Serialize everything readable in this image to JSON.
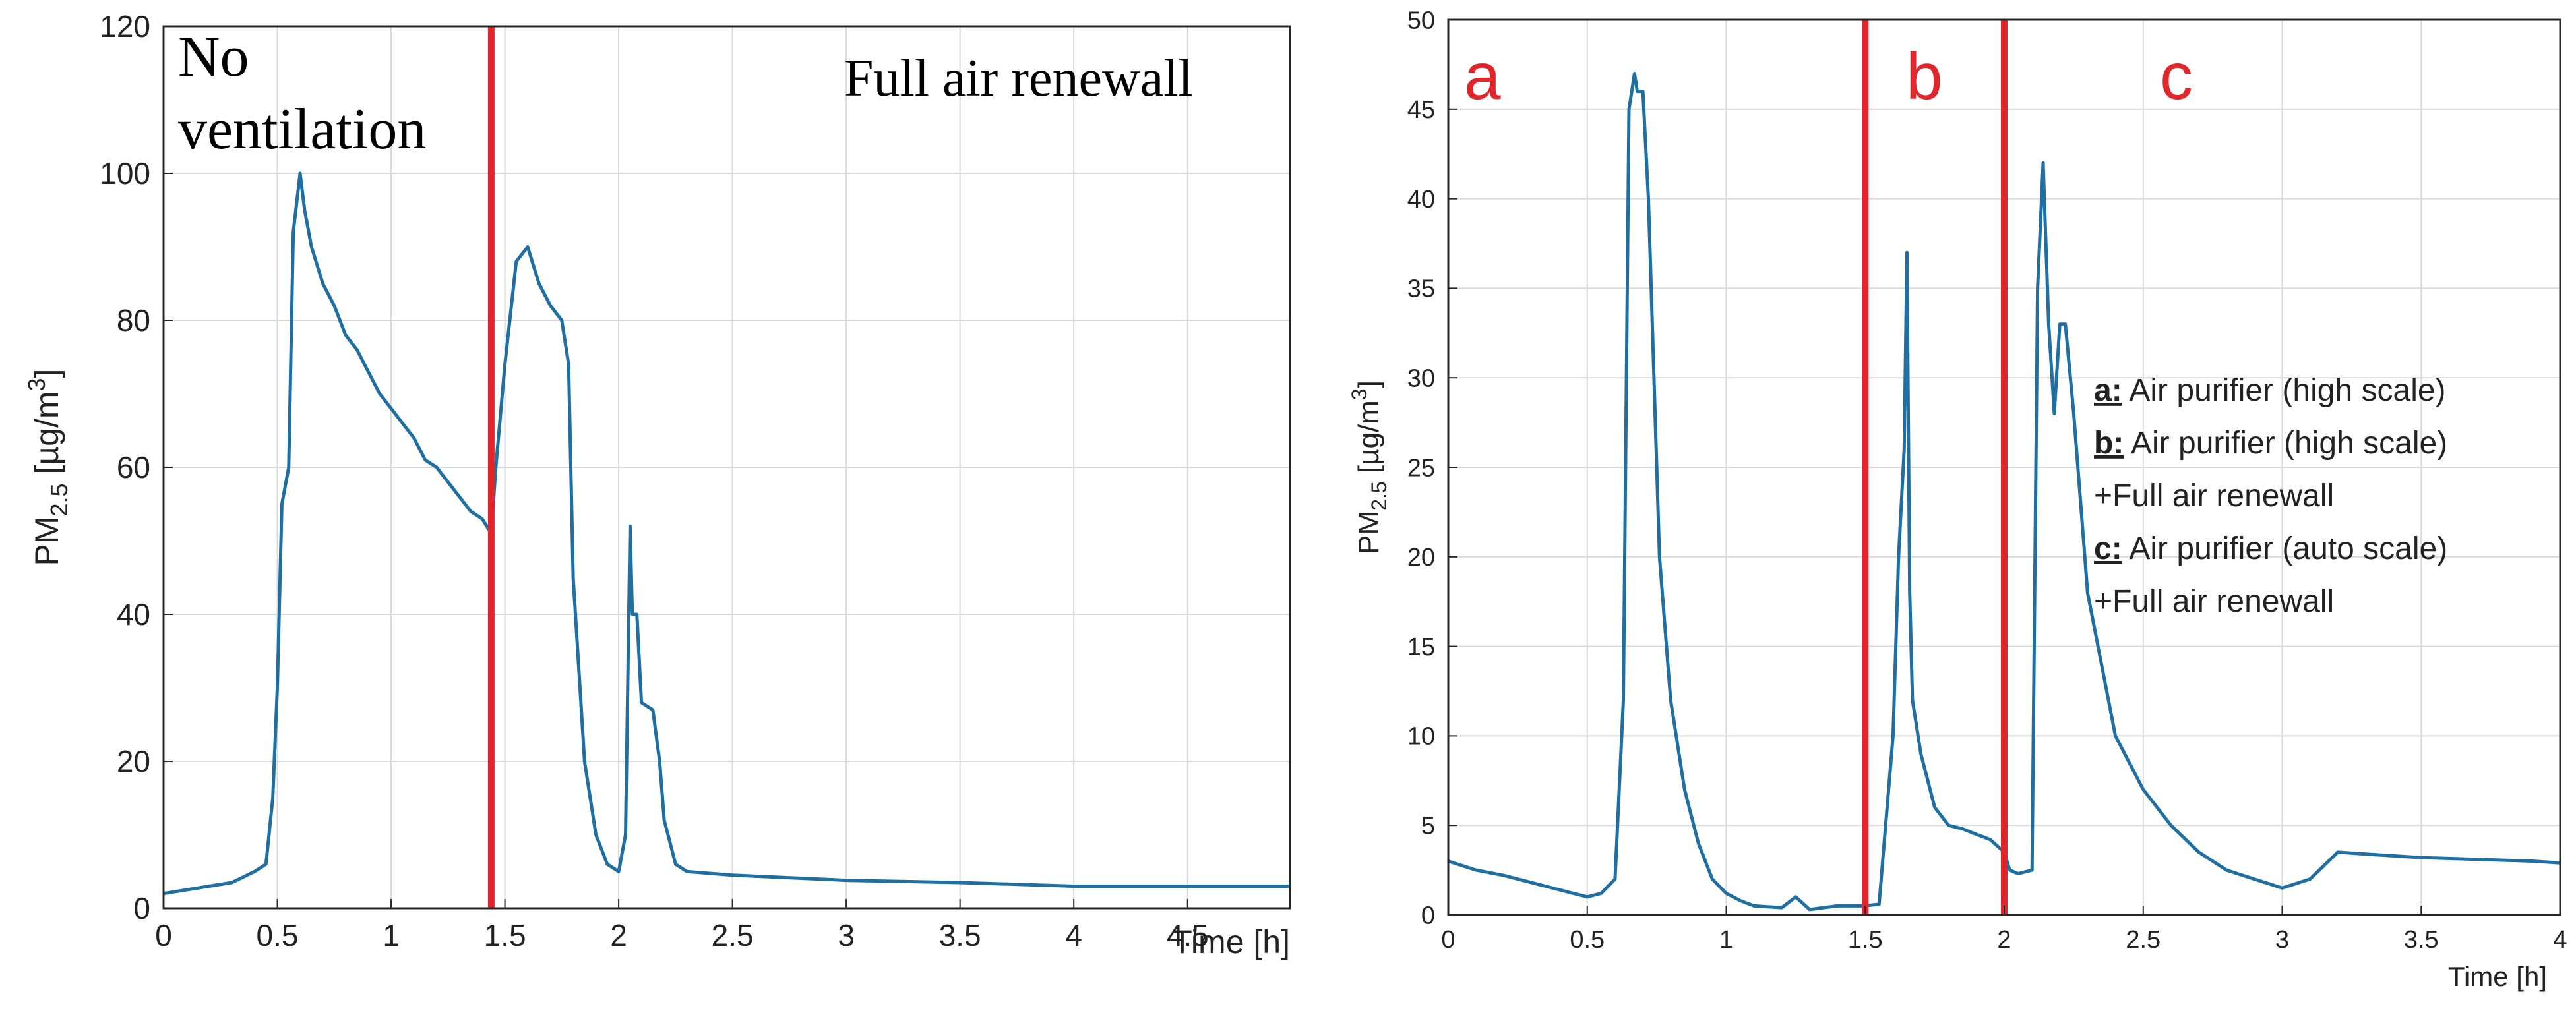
{
  "colors": {
    "series": "#1f6fa3",
    "marker_line": "#e0252b",
    "grid": "#d9d9d9",
    "axis": "#262626"
  },
  "chart_data": [
    {
      "type": "line",
      "xlabel": "Time [h]",
      "ylabel": "PM2.5 [µg/m3]",
      "ylabel_parts": {
        "main": "PM",
        "sub": "2.5",
        "unit": " [µg/m",
        "sup": "3",
        "close": "]"
      },
      "xlim": [
        0,
        4.95
      ],
      "ylim": [
        0,
        120
      ],
      "x_ticks": [
        0,
        0.5,
        1,
        1.5,
        2,
        2.5,
        3,
        3.5,
        4,
        4.5
      ],
      "x_tick_labels": [
        "0",
        "0.5",
        "1",
        "1.5",
        "2",
        "2.5",
        "3",
        "3.5",
        "4",
        "4.5"
      ],
      "y_ticks": [
        0,
        20,
        40,
        60,
        80,
        100,
        120
      ],
      "y_tick_labels": [
        "0",
        "20",
        "40",
        "60",
        "80",
        "100",
        "120"
      ],
      "grid": true,
      "vertical_lines": [
        1.44
      ],
      "annotations": [
        "No",
        "ventilation",
        "Full air renewall"
      ],
      "series": [
        {
          "x": [
            0,
            0.1,
            0.2,
            0.3,
            0.4,
            0.45,
            0.48,
            0.5,
            0.52,
            0.55,
            0.57,
            0.6,
            0.62,
            0.65,
            0.7,
            0.75,
            0.8,
            0.85,
            0.9,
            0.95,
            1.0,
            1.05,
            1.1,
            1.15,
            1.2,
            1.25,
            1.3,
            1.35,
            1.4,
            1.44,
            1.46,
            1.5,
            1.55,
            1.6,
            1.65,
            1.7,
            1.75,
            1.78,
            1.8,
            1.85,
            1.9,
            1.95,
            2.0,
            2.03,
            2.05,
            2.06,
            2.08,
            2.1,
            2.15,
            2.18,
            2.2,
            2.25,
            2.3,
            2.5,
            3.0,
            3.5,
            4.0,
            4.5,
            4.95
          ],
          "y": [
            2,
            2.5,
            3,
            3.5,
            5,
            6,
            15,
            30,
            55,
            60,
            92,
            100,
            95,
            90,
            85,
            82,
            78,
            76,
            73,
            70,
            68,
            66,
            64,
            61,
            60,
            58,
            56,
            54,
            53,
            51,
            60,
            74,
            88,
            90,
            85,
            82,
            80,
            74,
            45,
            20,
            10,
            6,
            5,
            10,
            52,
            40,
            40,
            28,
            27,
            20,
            12,
            6,
            5,
            4.5,
            3.8,
            3.5,
            3,
            3,
            3
          ]
        }
      ]
    },
    {
      "type": "line",
      "xlabel": "Time [h]",
      "ylabel": "PM2.5 [µg/m3]",
      "ylabel_parts": {
        "main": "PM",
        "sub": "2.5",
        "unit": " [µg/m",
        "sup": "3",
        "close": "]"
      },
      "xlim": [
        0,
        4
      ],
      "ylim": [
        0,
        50
      ],
      "x_ticks": [
        0,
        0.5,
        1,
        1.5,
        2,
        2.5,
        3,
        3.5,
        4
      ],
      "x_tick_labels": [
        "0",
        "0.5",
        "1",
        "1.5",
        "2",
        "2.5",
        "3",
        "3.5",
        "4"
      ],
      "y_ticks": [
        0,
        5,
        10,
        15,
        20,
        25,
        30,
        35,
        40,
        45,
        50
      ],
      "y_tick_labels": [
        "0",
        "5",
        "10",
        "15",
        "20",
        "25",
        "30",
        "35",
        "40",
        "45",
        "50"
      ],
      "grid": true,
      "vertical_lines": [
        1.5,
        2.0
      ],
      "region_labels": [
        "a",
        "b",
        "c"
      ],
      "legend": [
        {
          "key": "a:",
          "text": " Air purifier (high scale)"
        },
        {
          "key": "b:",
          "text": " Air purifier (high scale)"
        },
        {
          "key": "",
          "text": "+Full air renewall"
        },
        {
          "key": "c:",
          "text": " Air purifier (auto scale)"
        },
        {
          "key": "",
          "text": "+Full air renewall"
        }
      ],
      "series": [
        {
          "x": [
            0,
            0.1,
            0.2,
            0.3,
            0.4,
            0.5,
            0.55,
            0.6,
            0.63,
            0.65,
            0.67,
            0.68,
            0.7,
            0.72,
            0.74,
            0.76,
            0.8,
            0.85,
            0.9,
            0.95,
            1.0,
            1.05,
            1.1,
            1.2,
            1.25,
            1.3,
            1.4,
            1.5,
            1.55,
            1.6,
            1.62,
            1.64,
            1.65,
            1.66,
            1.67,
            1.7,
            1.75,
            1.8,
            1.85,
            1.9,
            1.95,
            2.0,
            2.02,
            2.05,
            2.1,
            2.12,
            2.14,
            2.16,
            2.18,
            2.2,
            2.22,
            2.25,
            2.3,
            2.35,
            2.4,
            2.5,
            2.6,
            2.7,
            2.8,
            2.9,
            3.0,
            3.1,
            3.2,
            3.3,
            3.5,
            3.7,
            3.9,
            4.0
          ],
          "y": [
            3,
            2.5,
            2.2,
            1.8,
            1.4,
            1,
            1.2,
            2,
            12,
            45,
            47,
            46,
            46,
            40,
            30,
            20,
            12,
            7,
            4,
            2,
            1.2,
            0.8,
            0.5,
            0.4,
            1,
            0.3,
            0.5,
            0.5,
            0.6,
            10,
            20,
            26,
            37,
            18,
            12,
            9,
            6,
            5,
            4.8,
            4.5,
            4.2,
            3.5,
            2.5,
            2.3,
            2.5,
            35,
            42,
            33,
            28,
            33,
            33,
            28,
            18,
            14,
            10,
            7,
            5,
            3.5,
            2.5,
            2,
            1.5,
            2,
            3.5,
            3.4,
            3.2,
            3.1,
            3,
            2.9
          ]
        }
      ]
    }
  ]
}
